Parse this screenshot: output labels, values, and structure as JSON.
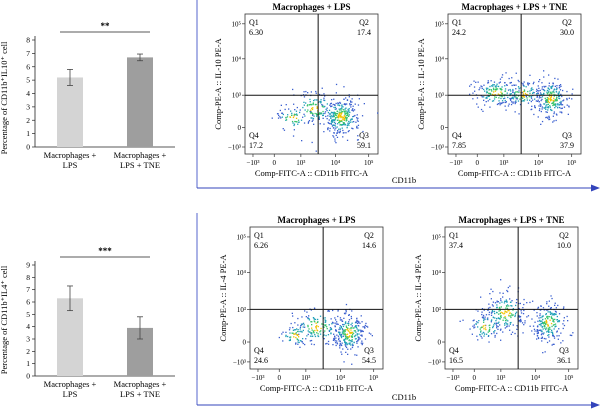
{
  "chart_data": [
    {
      "type": "bar",
      "ylabel": "Percentage of CD11b⁺IL10⁺ cell",
      "categories": [
        [
          "Macrophages +",
          "LPS"
        ],
        [
          "Macrophages +",
          "LPS + TNE"
        ]
      ],
      "values": [
        5.2,
        6.7
      ],
      "errors": [
        0.6,
        0.25
      ],
      "ylim": [
        0,
        8
      ],
      "yticks": [
        "0",
        "1",
        "2",
        "3",
        "4",
        "5",
        "6",
        "7",
        "8"
      ],
      "significance": "**",
      "colors": [
        "#d4d4d4",
        "#9e9e9e"
      ]
    },
    {
      "type": "bar",
      "ylabel": "Percentage of CD11b⁺IL4⁺ cell",
      "categories": [
        [
          "Macrophages +",
          "LPS"
        ],
        [
          "Macrophages +",
          "LPS + TNE"
        ]
      ],
      "values": [
        6.3,
        3.9
      ],
      "errors": [
        1.0,
        0.9
      ],
      "ylim": [
        0,
        9
      ],
      "yticks": [
        "0",
        "1",
        "2",
        "3",
        "4",
        "5",
        "6",
        "7",
        "8",
        "9"
      ],
      "significance": "***",
      "colors": [
        "#d4d4d4",
        "#9e9e9e"
      ]
    },
    {
      "type": "scatter",
      "title": "Macrophages + LPS",
      "xlabel": "Comp-FITC-A :: CD11b FITC-A",
      "ylabel": "Comp-PE-A :: IL-10 PE-A",
      "quadrants": {
        "Q1": "6.30",
        "Q2": "17.4",
        "Q3": "59.1",
        "Q4": "17.2"
      }
    },
    {
      "type": "scatter",
      "title": "Macrophages + LPS + TNE",
      "xlabel": "Comp-FITC-A :: CD11b FITC-A",
      "ylabel": "Comp-PE-A :: IL-10 PE-A",
      "quadrants": {
        "Q1": "24.2",
        "Q2": "30.0",
        "Q3": "37.9",
        "Q4": "7.85"
      }
    },
    {
      "type": "scatter",
      "title": "Macrophages + LPS",
      "xlabel": "Comp-FITC-A :: CD11b FITC-A",
      "ylabel": "Comp-PE-A :: IL-4 PE-A",
      "quadrants": {
        "Q1": "6.26",
        "Q2": "14.6",
        "Q3": "54.5",
        "Q4": "24.6"
      }
    },
    {
      "type": "scatter",
      "title": "Macrophages + LPS + TNE",
      "xlabel": "Comp-FITC-A :: CD11b FITC-A",
      "ylabel": "Comp-PE-A :: IL-4 PE-A",
      "quadrants": {
        "Q1": "37.4",
        "Q2": "10.0",
        "Q3": "36.1",
        "Q4": "16.5"
      }
    }
  ],
  "flow_axis": {
    "xticks": [
      "−10³",
      "0",
      "10³",
      "10⁴",
      "10⁵"
    ],
    "yticks": [
      "−10³",
      "0",
      "10³",
      "10⁴",
      "10⁵"
    ]
  },
  "arrow_labels": [
    "CD11b",
    "CD11b"
  ],
  "colors": {
    "arrow": "#3344bb",
    "frame": "#5566cc"
  }
}
